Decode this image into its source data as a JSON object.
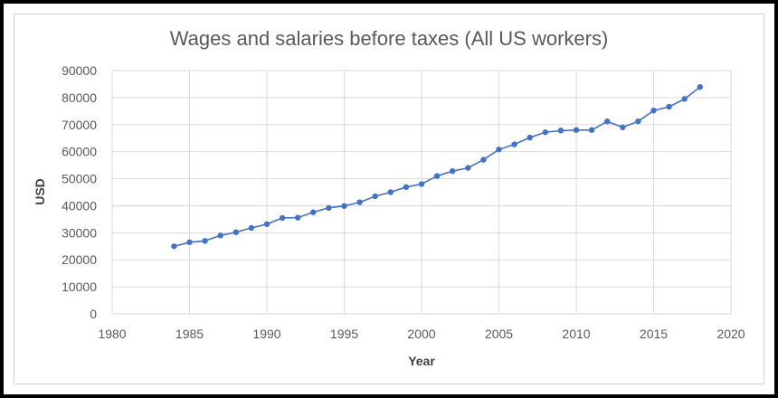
{
  "chart_data": {
    "type": "line",
    "title": "Wages and salaries before taxes (All US workers)",
    "xlabel": "Year",
    "ylabel": "USD",
    "xlim": [
      1980,
      2020
    ],
    "ylim": [
      0,
      90000
    ],
    "x_ticks": [
      1980,
      1985,
      1990,
      1995,
      2000,
      2005,
      2010,
      2015,
      2020
    ],
    "y_ticks": [
      0,
      10000,
      20000,
      30000,
      40000,
      50000,
      60000,
      70000,
      80000,
      90000
    ],
    "grid": true,
    "legend": "none",
    "series_color": "#4472c4",
    "x": [
      1984,
      1985,
      1986,
      1987,
      1988,
      1989,
      1990,
      1991,
      1992,
      1993,
      1994,
      1995,
      1996,
      1997,
      1998,
      1999,
      2000,
      2001,
      2002,
      2003,
      2004,
      2005,
      2006,
      2007,
      2008,
      2009,
      2010,
      2011,
      2012,
      2013,
      2014,
      2015,
      2016,
      2017,
      2018
    ],
    "y": [
      25000,
      26500,
      27000,
      29000,
      30200,
      31800,
      33200,
      35500,
      35600,
      37600,
      39200,
      39900,
      41300,
      43500,
      45000,
      46900,
      48000,
      51000,
      52800,
      54000,
      57000,
      60800,
      62700,
      65200,
      67200,
      67800,
      68000,
      68000,
      71200,
      69000,
      71200,
      75200,
      76600,
      79500,
      83900
    ]
  }
}
